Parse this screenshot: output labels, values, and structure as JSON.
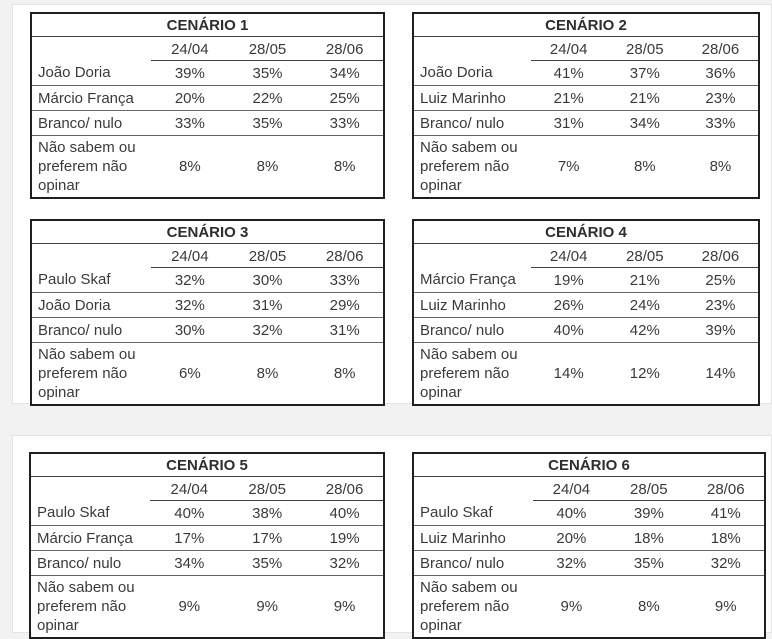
{
  "tables": [
    {
      "title": "CENÁRIO 1",
      "dates": [
        "24/04",
        "28/05",
        "28/06"
      ],
      "rows": [
        {
          "label": "João Doria",
          "values": [
            "39%",
            "35%",
            "34%"
          ]
        },
        {
          "label": "Márcio França",
          "values": [
            "20%",
            "22%",
            "25%"
          ]
        },
        {
          "label": "Branco/ nulo",
          "values": [
            "33%",
            "35%",
            "33%"
          ]
        },
        {
          "label": "Não sabem ou preferem não opinar",
          "values": [
            "8%",
            "8%",
            "8%"
          ]
        }
      ]
    },
    {
      "title": "CENÁRIO 2",
      "dates": [
        "24/04",
        "28/05",
        "28/06"
      ],
      "rows": [
        {
          "label": "João Doria",
          "values": [
            "41%",
            "37%",
            "36%"
          ]
        },
        {
          "label": "Luiz Marinho",
          "values": [
            "21%",
            "21%",
            "23%"
          ]
        },
        {
          "label": "Branco/ nulo",
          "values": [
            "31%",
            "34%",
            "33%"
          ]
        },
        {
          "label": "Não sabem ou preferem não opinar",
          "values": [
            "7%",
            "8%",
            "8%"
          ]
        }
      ]
    },
    {
      "title": "CENÁRIO 3",
      "dates": [
        "24/04",
        "28/05",
        "28/06"
      ],
      "rows": [
        {
          "label": "Paulo Skaf",
          "values": [
            "32%",
            "30%",
            "33%"
          ]
        },
        {
          "label": "João Doria",
          "values": [
            "32%",
            "31%",
            "29%"
          ]
        },
        {
          "label": "Branco/ nulo",
          "values": [
            "30%",
            "32%",
            "31%"
          ]
        },
        {
          "label": "Não sabem ou preferem não opinar",
          "values": [
            "6%",
            "8%",
            "8%"
          ]
        }
      ]
    },
    {
      "title": "CENÁRIO 4",
      "dates": [
        "24/04",
        "28/05",
        "28/06"
      ],
      "rows": [
        {
          "label": "Márcio França",
          "values": [
            "19%",
            "21%",
            "25%"
          ]
        },
        {
          "label": "Luiz Marinho",
          "values": [
            "26%",
            "24%",
            "23%"
          ]
        },
        {
          "label": "Branco/ nulo",
          "values": [
            "40%",
            "42%",
            "39%"
          ]
        },
        {
          "label": "Não sabem ou preferem não opinar",
          "values": [
            "14%",
            "12%",
            "14%"
          ]
        }
      ]
    },
    {
      "title": "CENÁRIO 5",
      "dates": [
        "24/04",
        "28/05",
        "28/06"
      ],
      "rows": [
        {
          "label": "Paulo Skaf",
          "values": [
            "40%",
            "38%",
            "40%"
          ]
        },
        {
          "label": "Márcio França",
          "values": [
            "17%",
            "17%",
            "19%"
          ]
        },
        {
          "label": "Branco/ nulo",
          "values": [
            "34%",
            "35%",
            "32%"
          ]
        },
        {
          "label": "Não sabem ou preferem não opinar",
          "values": [
            "9%",
            "9%",
            "9%"
          ]
        }
      ]
    },
    {
      "title": "CENÁRIO 6",
      "dates": [
        "24/04",
        "28/05",
        "28/06"
      ],
      "rows": [
        {
          "label": "Paulo Skaf",
          "values": [
            "40%",
            "39%",
            "41%"
          ]
        },
        {
          "label": "Luiz Marinho",
          "values": [
            "20%",
            "18%",
            "18%"
          ]
        },
        {
          "label": "Branco/ nulo",
          "values": [
            "32%",
            "35%",
            "32%"
          ]
        },
        {
          "label": "Não sabem ou preferem não opinar",
          "values": [
            "9%",
            "8%",
            "9%"
          ]
        }
      ]
    }
  ]
}
